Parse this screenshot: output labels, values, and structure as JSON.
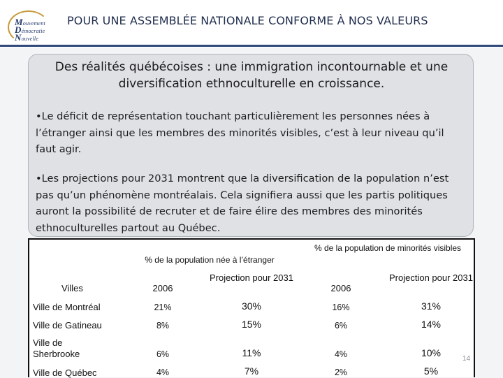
{
  "header": {
    "title": "POUR UNE ASSEMBLÉE NATIONALE CONFORME À NOS VALEURS",
    "logo_lines": [
      "ouvement",
      "émocratie",
      "ouvelle"
    ],
    "logo_initials": [
      "M",
      "D",
      "N"
    ]
  },
  "box": {
    "title_main": "Des réalités québécoises : une immigration incontournable et une diversification ethnoculturelle en croissance",
    "title_end": ".",
    "bullets": [
      "•Le déficit de représentation touchant particulièrement les personnes nées à l’étranger ainsi que les membres des minorités visibles, c’est à leur niveau qu’il faut agir.",
      "•Les projections pour 2031 montrent que la diversification de la population n’est pas qu’un phénomène montréalais. Cela signifiera aussi que les partis politiques auront la possibilité de recruter et de faire élire des membres des minorités ethnoculturelles partout au Québec."
    ]
  },
  "table": {
    "group_headers": [
      "% de la population née à l’étranger",
      "% de la population de minorités visibles"
    ],
    "col_headers": [
      "Villes",
      "2006",
      "Projection pour 2031",
      "2006",
      "Projection pour 2031"
    ],
    "rows": [
      {
        "ville": "Ville de Montréal",
        "v1": "21%",
        "v2": "30%",
        "v3": "16%",
        "v4": "31%"
      },
      {
        "ville": "Ville de Gatineau",
        "v1": "8%",
        "v2": "15%",
        "v3": "6%",
        "v4": "14%"
      },
      {
        "ville": "Ville de Sherbrooke",
        "v1": "6%",
        "v2": "11%",
        "v3": "4%",
        "v4": "10%"
      },
      {
        "ville": "Ville de Québec",
        "v1": "4%",
        "v2": "7%",
        "v3": "2%",
        "v4": "5%"
      }
    ]
  },
  "page_number": "14"
}
